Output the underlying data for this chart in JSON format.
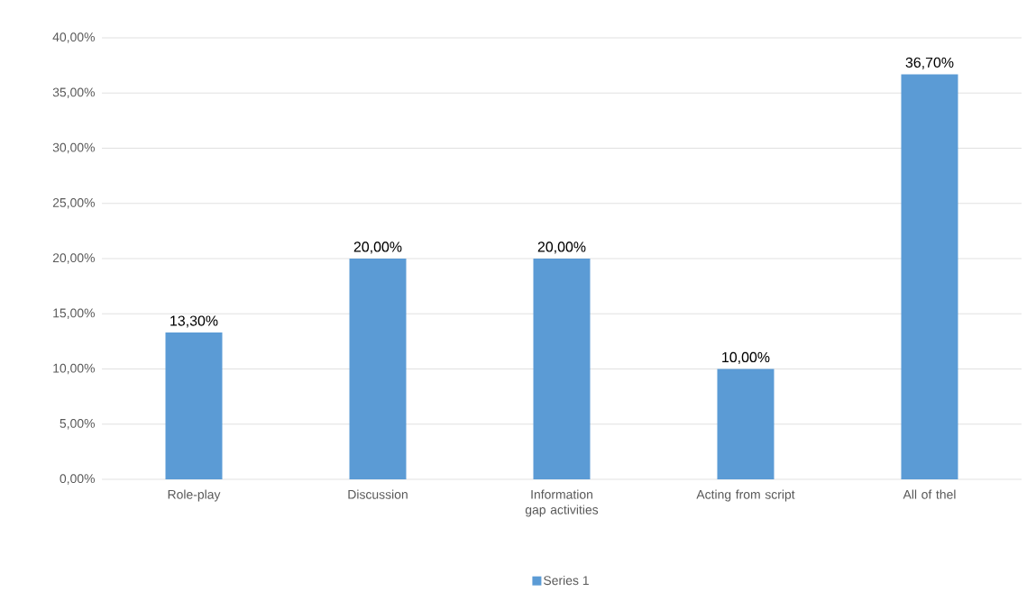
{
  "chart_data": {
    "type": "bar",
    "categories": [
      "Role-play",
      "Discussion",
      "Information gap activities",
      "Acting from script",
      "All of thel"
    ],
    "series": [
      {
        "name": "Series 1",
        "color": "#5b9bd5",
        "values": [
          13.3,
          20,
          20,
          10,
          36.7
        ],
        "value_labels": [
          "13,30%",
          "20,00%",
          "20,00%",
          "10,00%",
          "36,70%"
        ]
      }
    ],
    "ylim": [
      0,
      40
    ],
    "yticks": [
      {
        "value": 0,
        "label": "0,00%"
      },
      {
        "value": 5,
        "label": "5,00%"
      },
      {
        "value": 10,
        "label": "10,00%"
      },
      {
        "value": 15,
        "label": "15,00%"
      },
      {
        "value": 20,
        "label": "20,00%"
      },
      {
        "value": 25,
        "label": "25,00%"
      },
      {
        "value": 30,
        "label": "30,00%"
      },
      {
        "value": 35,
        "label": "35,00%"
      },
      {
        "value": 40,
        "label": "40,00%"
      }
    ],
    "grid": "y",
    "legend": "bottom"
  }
}
